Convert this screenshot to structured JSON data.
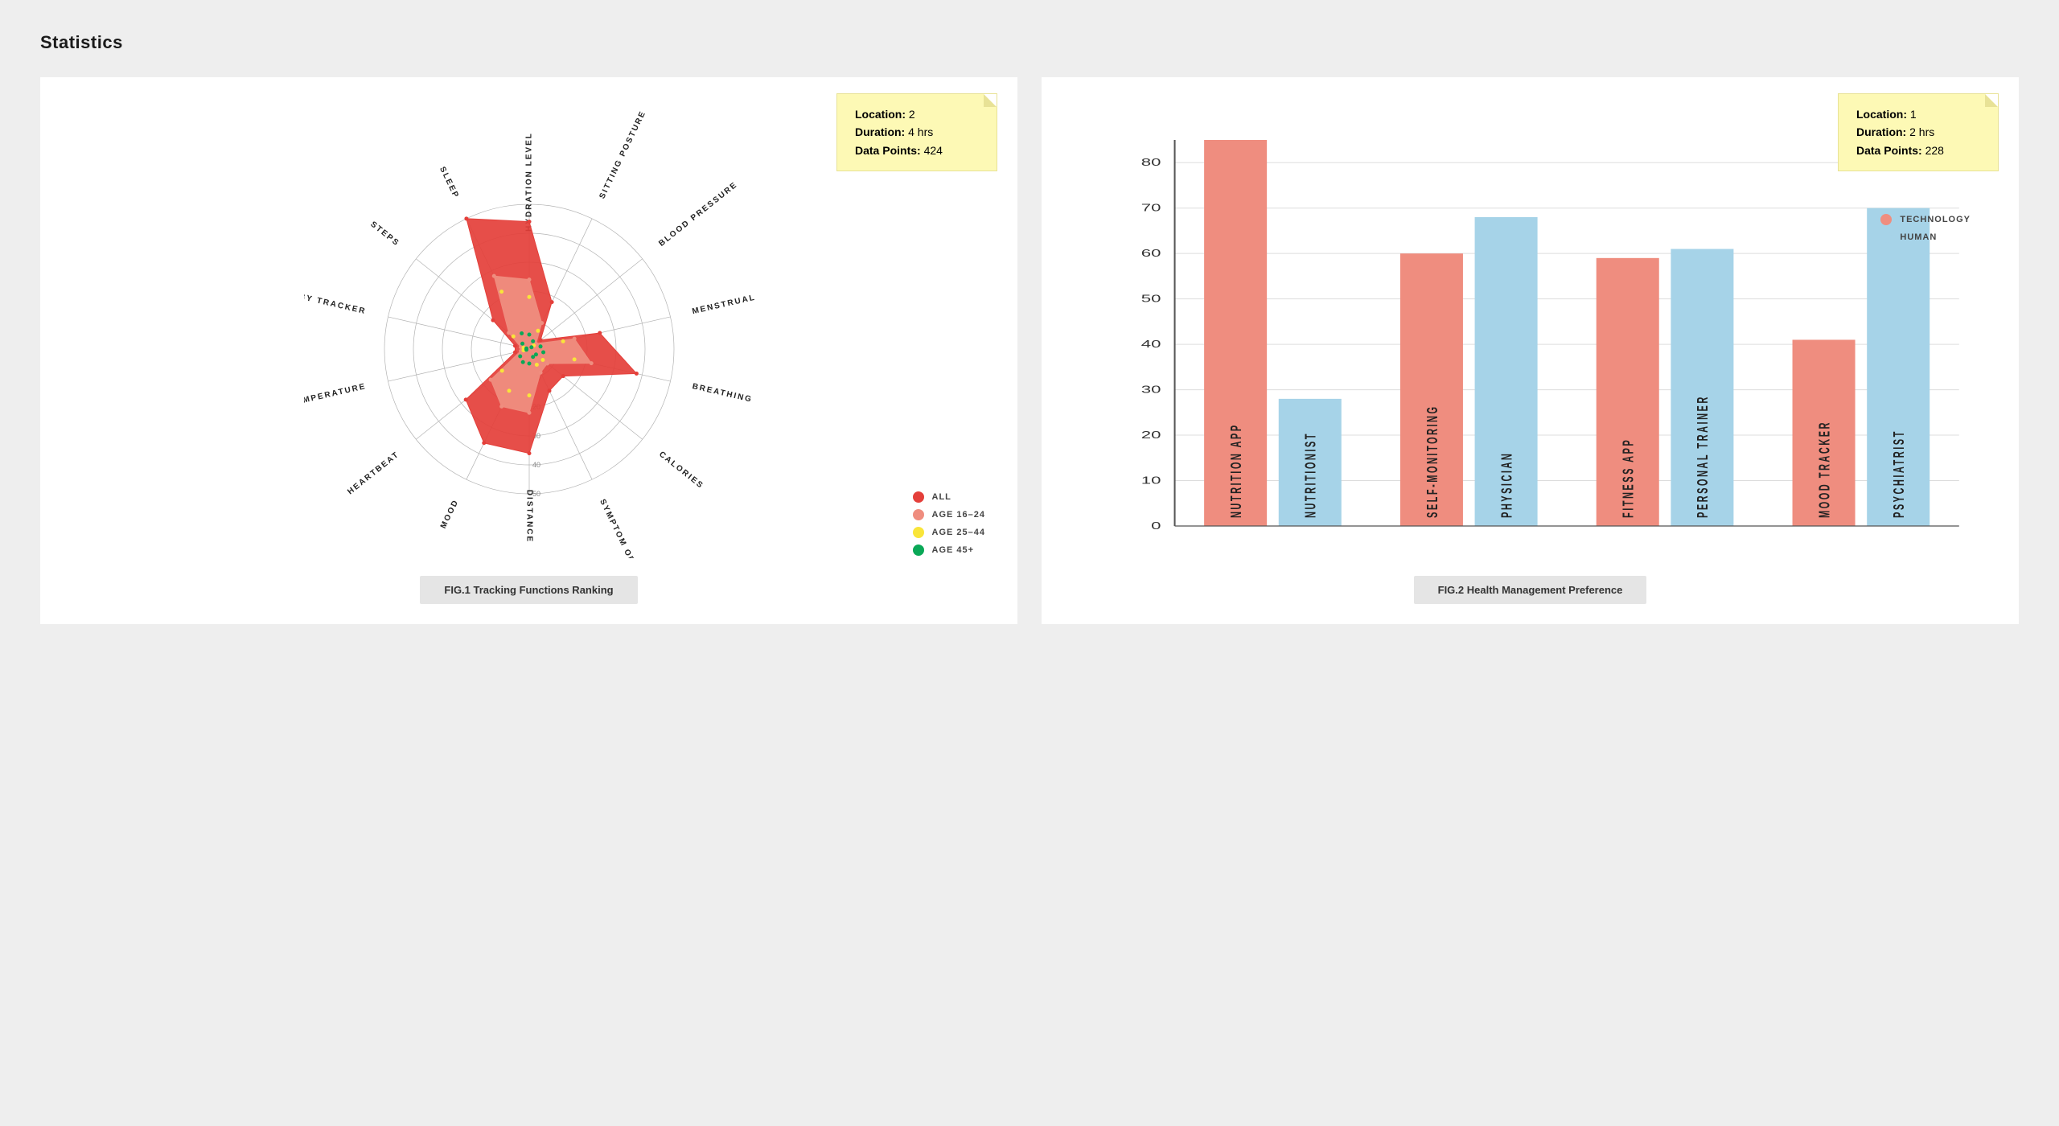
{
  "page_title": "Statistics",
  "radar_chart": {
    "type": "radar",
    "caption": "FIG.1 Tracking Functions Ranking",
    "note": {
      "location_label": "Location:",
      "location_value": "2",
      "duration_label": "Duration:",
      "duration_value": "4 hrs",
      "datapoints_label": "Data Points:",
      "datapoints_value": "424"
    },
    "note_bg": "#fdf9b5",
    "axes": [
      "HYDRATION LEVEL",
      "SITTING POSTURE",
      "BLOOD PRESSURE",
      "MENSTRUAL CYCLE",
      "BREATHING",
      "CALORIES",
      "SYMPTOM OF DISEASE",
      "DISTANCE",
      "MOOD",
      "HEARTBEAT",
      "BODY TEMPERATURE",
      "BABY TRACKER",
      "STEPS",
      "SLEEP"
    ],
    "max_value": 50,
    "rings": [
      10,
      20,
      30,
      40,
      50
    ],
    "ring_labels": [
      "10",
      "20",
      "30",
      "40",
      "50"
    ],
    "ring_label_axis_index": 7,
    "series": [
      {
        "name": "ALL",
        "color": "#e43f3a",
        "fill_opacity": 0.92,
        "values": [
          44,
          18,
          5,
          25,
          38,
          15,
          16,
          36,
          36,
          28,
          5,
          5,
          16,
          50
        ]
      },
      {
        "name": "AGE 16–24",
        "color": "#ef8d7f",
        "fill_opacity": 0.95,
        "values": [
          24,
          10,
          3,
          16,
          22,
          8,
          9,
          22,
          22,
          17,
          3,
          3,
          9,
          28
        ]
      },
      {
        "name": "AGE 25–44",
        "color": "#f9e53a",
        "fill_opacity": 0,
        "marker_only": true,
        "values": [
          18,
          7,
          2,
          12,
          16,
          6,
          6,
          16,
          16,
          12,
          2,
          2,
          7,
          22
        ]
      },
      {
        "name": "AGE 45+",
        "color": "#0aa857",
        "fill_opacity": 0,
        "marker_only": true,
        "values": [
          5,
          3,
          1,
          4,
          5,
          3,
          3,
          5,
          5,
          4,
          1,
          1,
          3,
          6
        ]
      }
    ],
    "legend": [
      {
        "label": "ALL",
        "color": "#e43f3a"
      },
      {
        "label": "AGE 16–24",
        "color": "#ef8d7f"
      },
      {
        "label": "AGE 25–44",
        "color": "#f9e53a"
      },
      {
        "label": "AGE 45+",
        "color": "#0aa857"
      }
    ],
    "grid_color": "#b3b3b3",
    "axis_color": "#b3b3b3",
    "background": "#ffffff"
  },
  "bar_chart": {
    "type": "grouped_bar",
    "caption": "FIG.2 Health Management Preference",
    "note": {
      "location_label": "Location:",
      "location_value": "1",
      "duration_label": "Duration:",
      "duration_value": "2 hrs",
      "datapoints_label": "Data Points:",
      "datapoints_value": "228"
    },
    "y_max": 85,
    "y_ticks": [
      0,
      10,
      20,
      30,
      40,
      50,
      60,
      70,
      80
    ],
    "bars": [
      {
        "label": "NUTRITION APP",
        "value": 85,
        "series": "TECHNOLOGY"
      },
      {
        "label": "NUTRITIONIST",
        "value": 28,
        "series": "HUMAN"
      },
      {
        "label": "SELF-MONITORING",
        "value": 60,
        "series": "TECHNOLOGY"
      },
      {
        "label": "PHYSICIAN",
        "value": 68,
        "series": "HUMAN"
      },
      {
        "label": "FITNESS APP",
        "value": 59,
        "series": "TECHNOLOGY"
      },
      {
        "label": "PERSONAL TRAINER",
        "value": 61,
        "series": "HUMAN"
      },
      {
        "label": "MOOD TRACKER",
        "value": 41,
        "series": "TECHNOLOGY"
      },
      {
        "label": "PSYCHIATRIST",
        "value": 70,
        "series": "HUMAN"
      }
    ],
    "series_colors": {
      "TECHNOLOGY": "#ef8d7f",
      "HUMAN": "#a6d3e8"
    },
    "legend": [
      {
        "label": "TECHNOLOGY",
        "color": "#ef8d7f"
      },
      {
        "label": "HUMAN",
        "color": "#a6d3e8"
      }
    ],
    "grid_color": "#dddddd",
    "axis_color": "#555555",
    "bar_width_ratio": 0.7,
    "background": "#ffffff"
  }
}
